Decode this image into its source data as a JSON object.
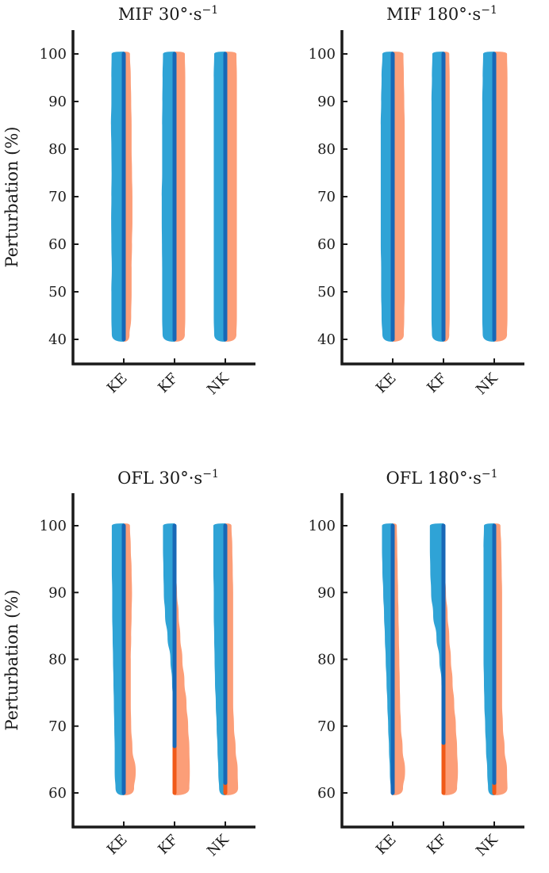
{
  "colors": {
    "left_half": "#2fa3d6",
    "right_half": "#fc9e78",
    "center_line_blue": "#1868b7",
    "center_line_orange": "#f05a19",
    "axis": "#1a1a1a"
  },
  "chart_data": [
    {
      "type": "violin",
      "title": "MIF 30°·s",
      "title_sup": "−1",
      "ylabel": "Perturbation (%)",
      "ylim": [
        35,
        105
      ],
      "yticks": [
        "40",
        "50",
        "60",
        "70",
        "80",
        "90",
        "100"
      ],
      "yrange": [
        40,
        100
      ],
      "categories": [
        "KE",
        "KF",
        "NK"
      ],
      "violins": [
        {
          "category": "KE",
          "left_width": [
            0.58,
            0.6,
            0.6,
            0.58,
            0.6,
            0.61,
            0.6,
            0.59,
            0.6,
            0.62,
            0.6,
            0.6,
            0.59
          ],
          "right_width": [
            0.28,
            0.36,
            0.38,
            0.38,
            0.4,
            0.42,
            0.42,
            0.4,
            0.38,
            0.38,
            0.36,
            0.34,
            0.3
          ],
          "orange_below": null
        },
        {
          "category": "KF",
          "left_width": [
            0.58,
            0.6,
            0.6,
            0.6,
            0.61,
            0.62,
            0.62,
            0.6,
            0.6,
            0.6,
            0.59,
            0.58,
            0.56
          ],
          "right_width": [
            0.5,
            0.52,
            0.52,
            0.52,
            0.52,
            0.52,
            0.52,
            0.52,
            0.52,
            0.52,
            0.52,
            0.52,
            0.5
          ],
          "orange_below": null
        },
        {
          "category": "NK",
          "left_width": [
            0.54,
            0.56,
            0.56,
            0.56,
            0.56,
            0.56,
            0.56,
            0.56,
            0.56,
            0.56,
            0.56,
            0.56,
            0.54
          ],
          "right_width": [
            0.54,
            0.56,
            0.56,
            0.56,
            0.56,
            0.56,
            0.56,
            0.56,
            0.56,
            0.56,
            0.56,
            0.56,
            0.54
          ],
          "orange_below": null
        }
      ]
    },
    {
      "type": "violin",
      "title": "MIF 180°·s",
      "title_sup": "−1",
      "ylabel": "",
      "ylim": [
        35,
        105
      ],
      "yticks": [
        "40",
        "50",
        "60",
        "70",
        "80",
        "90",
        "100"
      ],
      "yrange": [
        40,
        100
      ],
      "categories": [
        "KE",
        "KF",
        "NK"
      ],
      "violins": [
        {
          "category": "KE",
          "left_width": [
            0.5,
            0.54,
            0.56,
            0.56,
            0.58,
            0.58,
            0.58,
            0.58,
            0.58,
            0.58,
            0.56,
            0.54,
            0.5
          ],
          "right_width": [
            0.54,
            0.56,
            0.58,
            0.58,
            0.58,
            0.58,
            0.58,
            0.58,
            0.58,
            0.58,
            0.56,
            0.54,
            0.52
          ],
          "orange_below": null
        },
        {
          "category": "KF",
          "left_width": [
            0.56,
            0.58,
            0.58,
            0.58,
            0.58,
            0.58,
            0.58,
            0.58,
            0.58,
            0.58,
            0.58,
            0.56,
            0.54
          ],
          "right_width": [
            0.28,
            0.3,
            0.3,
            0.3,
            0.3,
            0.3,
            0.3,
            0.3,
            0.3,
            0.3,
            0.3,
            0.3,
            0.28
          ],
          "orange_below": null
        },
        {
          "category": "NK",
          "left_width": [
            0.56,
            0.58,
            0.58,
            0.58,
            0.58,
            0.58,
            0.58,
            0.58,
            0.58,
            0.58,
            0.58,
            0.56,
            0.54
          ],
          "right_width": [
            0.62,
            0.64,
            0.64,
            0.64,
            0.64,
            0.64,
            0.64,
            0.64,
            0.64,
            0.64,
            0.64,
            0.64,
            0.62
          ],
          "orange_below": null
        }
      ]
    },
    {
      "type": "violin",
      "title": "OFL 30°·s",
      "title_sup": "−1",
      "ylabel": "Perturbation (%)",
      "ylim": [
        55,
        105
      ],
      "yticks": [
        "60",
        "70",
        "80",
        "90",
        "100"
      ],
      "yrange": [
        60,
        100
      ],
      "categories": [
        "KE",
        "KF",
        "NK"
      ],
      "violins": [
        {
          "category": "KE",
          "left_width": [
            0.4,
            0.44,
            0.44,
            0.46,
            0.48,
            0.5,
            0.52,
            0.54,
            0.56,
            0.56,
            0.58,
            0.58,
            0.58
          ],
          "right_width": [
            0.5,
            0.58,
            0.42,
            0.36,
            0.34,
            0.34,
            0.34,
            0.36,
            0.38,
            0.4,
            0.38,
            0.34,
            0.3
          ],
          "orange_below": null
        },
        {
          "category": "KF",
          "left_width": [
            0,
            0,
            0,
            0,
            0.06,
            0.12,
            0.2,
            0.34,
            0.46,
            0.52,
            0.54,
            0.56,
            0.56
          ],
          "right_width": [
            0.72,
            0.74,
            0.72,
            0.66,
            0.58,
            0.48,
            0.38,
            0.28,
            0.2,
            0.12,
            0.06,
            0.02,
            0
          ],
          "orange_below": 67
        },
        {
          "category": "NK",
          "left_width": [
            0.3,
            0.34,
            0.38,
            0.42,
            0.46,
            0.5,
            0.52,
            0.54,
            0.56,
            0.56,
            0.58,
            0.58,
            0.58
          ],
          "right_width": [
            0.62,
            0.6,
            0.5,
            0.42,
            0.38,
            0.38,
            0.38,
            0.38,
            0.38,
            0.38,
            0.36,
            0.34,
            0.3
          ],
          "orange_below": 61.5
        }
      ]
    },
    {
      "type": "violin",
      "title": "OFL 180°·s",
      "title_sup": "−1",
      "ylabel": "",
      "ylim": [
        55,
        105
      ],
      "yticks": [
        "60",
        "70",
        "80",
        "90",
        "100"
      ],
      "yrange": [
        60,
        100
      ],
      "categories": [
        "KE",
        "KF",
        "NK"
      ],
      "violins": [
        {
          "category": "KE",
          "left_width": [
            0.1,
            0.14,
            0.18,
            0.22,
            0.26,
            0.3,
            0.34,
            0.38,
            0.42,
            0.46,
            0.5,
            0.52,
            0.52
          ],
          "right_width": [
            0.5,
            0.6,
            0.48,
            0.4,
            0.36,
            0.34,
            0.32,
            0.3,
            0.28,
            0.26,
            0.24,
            0.22,
            0.2
          ],
          "orange_below": null
        },
        {
          "category": "KF",
          "left_width": [
            0,
            0,
            0,
            0,
            0.04,
            0.1,
            0.2,
            0.34,
            0.5,
            0.6,
            0.64,
            0.66,
            0.66
          ],
          "right_width": [
            0.66,
            0.7,
            0.66,
            0.6,
            0.52,
            0.44,
            0.36,
            0.28,
            0.2,
            0.12,
            0.06,
            0.02,
            0
          ],
          "orange_below": 67.5
        },
        {
          "category": "NK",
          "left_width": [
            0.3,
            0.34,
            0.4,
            0.44,
            0.48,
            0.5,
            0.52,
            0.52,
            0.52,
            0.52,
            0.52,
            0.52,
            0.5
          ],
          "right_width": [
            0.64,
            0.62,
            0.5,
            0.42,
            0.38,
            0.38,
            0.38,
            0.38,
            0.38,
            0.38,
            0.36,
            0.34,
            0.3
          ],
          "orange_below": 61.5
        }
      ]
    }
  ]
}
